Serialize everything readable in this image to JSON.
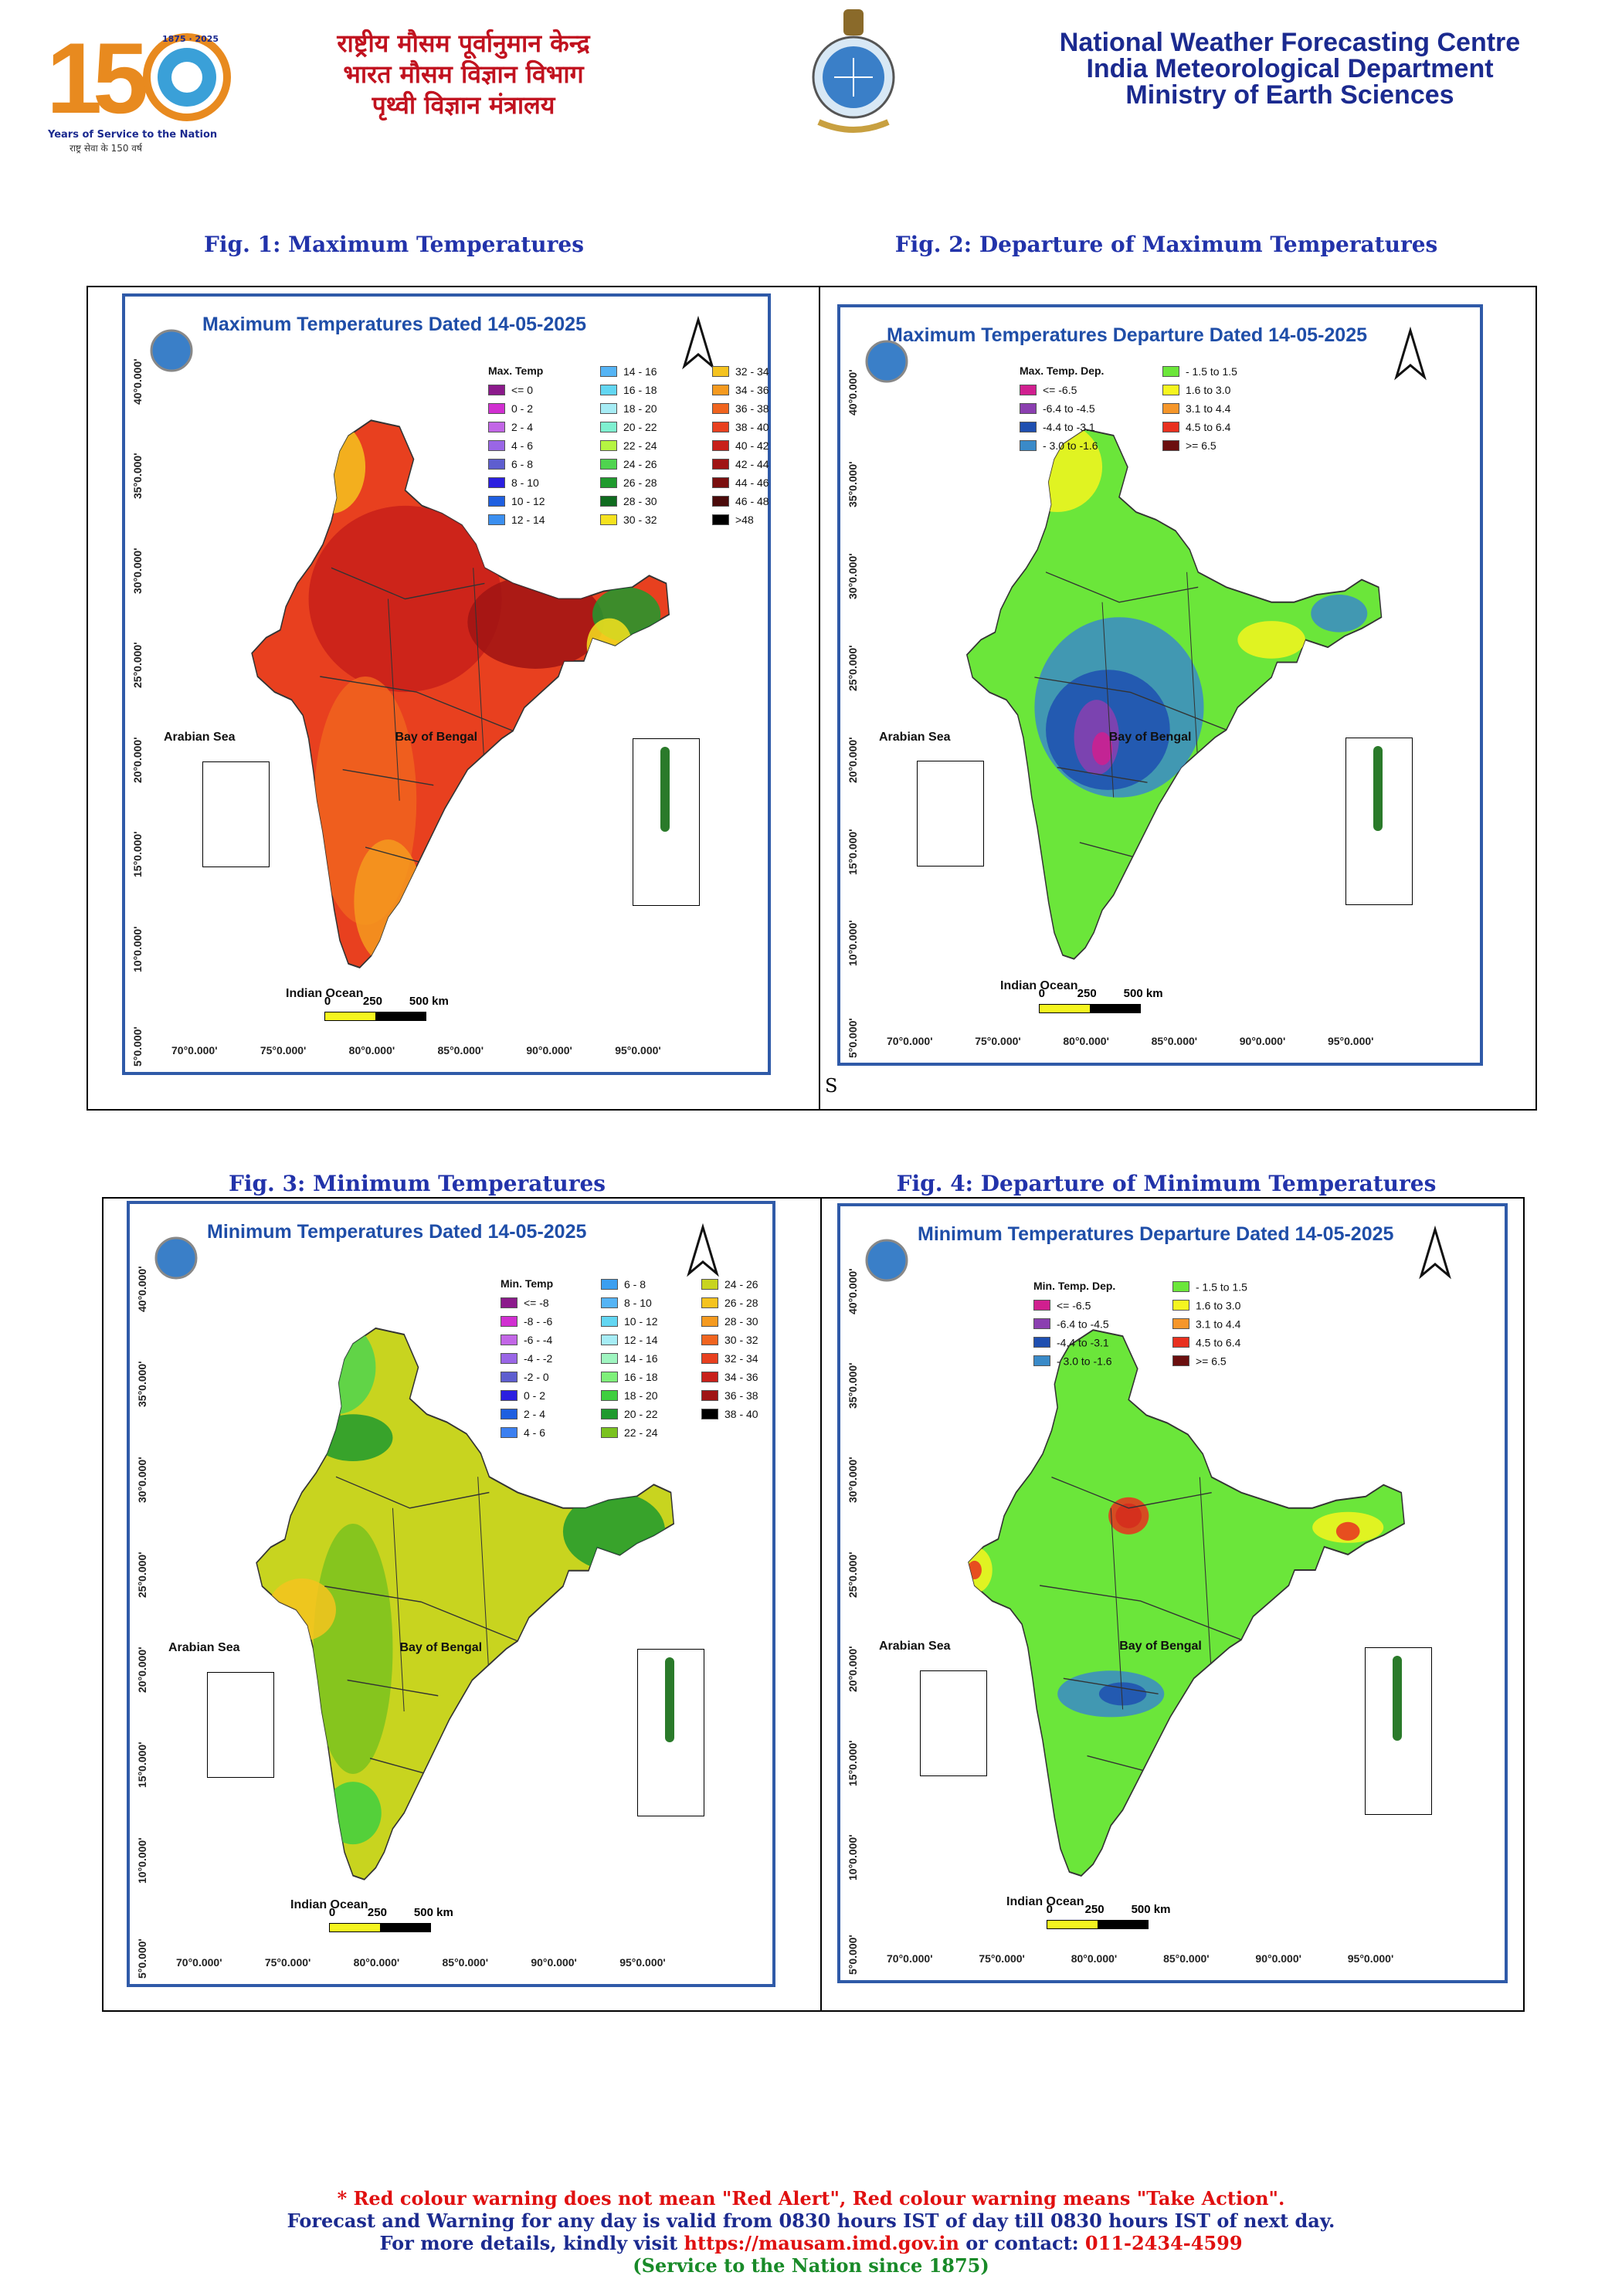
{
  "header": {
    "logo_number": "150",
    "logo_years": "1875 · 2025",
    "logo_tagline": "Years of Service to the Nation",
    "logo_tagline_hi": "राष्ट्र सेवा के 150 वर्ष",
    "hindi_lines": [
      "राष्ट्रीय मौसम पूर्वानुमान केन्द्र",
      "भारत मौसम विज्ञान विभाग",
      "पृथ्वी विज्ञान मंत्रालय"
    ],
    "english_lines": [
      "National Weather Forecasting Centre",
      "India Meteorological Department",
      "Ministry of Earth Sciences"
    ]
  },
  "figures": [
    {
      "caption": "Fig. 1: Maximum Temperatures",
      "map_title": "Maximum Temperatures  Dated 14-05-2025",
      "legend_title": "Max. Temp",
      "legend_items": [
        {
          "label": "<= 0",
          "color": "#8b1a8b"
        },
        {
          "label": "0 - 2",
          "color": "#d12fd1"
        },
        {
          "label": "2 - 4",
          "color": "#c266e6"
        },
        {
          "label": "4 - 6",
          "color": "#9a66e6"
        },
        {
          "label": "6 - 8",
          "color": "#5e5ecf"
        },
        {
          "label": "8 - 10",
          "color": "#2b1fe0"
        },
        {
          "label": "10 - 12",
          "color": "#1f5fe0"
        },
        {
          "label": "12 - 14",
          "color": "#3b8ff0"
        },
        {
          "label": "14 - 16",
          "color": "#55b4f5"
        },
        {
          "label": "16 - 18",
          "color": "#62d6f2"
        },
        {
          "label": "18 - 20",
          "color": "#a6ecf5"
        },
        {
          "label": "20 - 22",
          "color": "#7ff0d0"
        },
        {
          "label": "22 - 24",
          "color": "#b5f542"
        },
        {
          "label": "24 - 26",
          "color": "#4fd44f"
        },
        {
          "label": "26 - 28",
          "color": "#1f9a2e"
        },
        {
          "label": "28 - 30",
          "color": "#0f6b1f"
        },
        {
          "label": "30 - 32",
          "color": "#f5e21f"
        },
        {
          "label": "32 - 34",
          "color": "#f5c31f"
        },
        {
          "label": "34 - 36",
          "color": "#f59a1f"
        },
        {
          "label": "36 - 38",
          "color": "#f0641f"
        },
        {
          "label": "38 - 40",
          "color": "#e8401f"
        },
        {
          "label": "40 - 42",
          "color": "#c8201a"
        },
        {
          "label": "42 - 44",
          "color": "#a01414"
        },
        {
          "label": "44 - 46",
          "color": "#7a0f0f"
        },
        {
          "label": "46 - 48",
          "color": "#4a0a0a"
        },
        {
          "label": ">48",
          "color": "#000000"
        }
      ]
    },
    {
      "caption": "Fig. 2: Departure of Maximum Temperatures",
      "map_title": "Maximum Temperatures Departure Dated 14-05-2025",
      "legend_title": "Max. Temp. Dep.",
      "legend_items": [
        {
          "label": "<= -6.5",
          "color": "#d01f8f"
        },
        {
          "label": "-6.4 to -4.5",
          "color": "#8b3fb0"
        },
        {
          "label": "-4.4 to -3.1",
          "color": "#1f4fb0"
        },
        {
          "label": "- 3.0 to -1.6",
          "color": "#3a8ac8"
        },
        {
          "label": "- 1.5 to 1.5",
          "color": "#6be63a"
        },
        {
          "label": "1.6 to  3.0",
          "color": "#f5f51f"
        },
        {
          "label": "3.1 to 4.4",
          "color": "#f5962a"
        },
        {
          "label": "4.5 to 6.4",
          "color": "#e8301f"
        },
        {
          "label": ">= 6.5",
          "color": "#6b0f0f"
        }
      ],
      "note": "S"
    },
    {
      "caption": "Fig. 3: Minimum Temperatures",
      "map_title": "Minimum Temperatures  Dated 14-05-2025",
      "legend_title": "Min. Temp",
      "legend_items": [
        {
          "label": "<= -8",
          "color": "#8b1a8b"
        },
        {
          "label": "-8 - -6",
          "color": "#d12fd1"
        },
        {
          "label": "-6 - -4",
          "color": "#c266e6"
        },
        {
          "label": "-4 - -2",
          "color": "#9a66e6"
        },
        {
          "label": "-2 - 0",
          "color": "#5e5ecf"
        },
        {
          "label": "0 - 2",
          "color": "#2b1fe0"
        },
        {
          "label": "2 - 4",
          "color": "#1f5fe0"
        },
        {
          "label": "4 - 6",
          "color": "#3b7ff0"
        },
        {
          "label": "6 - 8",
          "color": "#3b9ff0"
        },
        {
          "label": "8 - 10",
          "color": "#55b4f5"
        },
        {
          "label": "10 - 12",
          "color": "#62d6f2"
        },
        {
          "label": "12 - 14",
          "color": "#a6ecf5"
        },
        {
          "label": "14 - 16",
          "color": "#9ff5c0"
        },
        {
          "label": "16 - 18",
          "color": "#7ff07a"
        },
        {
          "label": "18 - 20",
          "color": "#3fcf3f"
        },
        {
          "label": "20 - 22",
          "color": "#1f9a2e"
        },
        {
          "label": "22 - 24",
          "color": "#7ac21f"
        },
        {
          "label": "24 - 26",
          "color": "#c8d41f"
        },
        {
          "label": "26 - 28",
          "color": "#f5c31f"
        },
        {
          "label": "28 - 30",
          "color": "#f59a1f"
        },
        {
          "label": "30 - 32",
          "color": "#f0641f"
        },
        {
          "label": "32 - 34",
          "color": "#e8401f"
        },
        {
          "label": "34 - 36",
          "color": "#c8201a"
        },
        {
          "label": "36 - 38",
          "color": "#a01414"
        },
        {
          "label": "38 - 40",
          "color": "#000000"
        }
      ]
    },
    {
      "caption": "Fig. 4: Departure of Minimum Temperatures",
      "map_title": "Minimum Temperatures Departure Dated 14-05-2025",
      "legend_title": "Min. Temp. Dep.",
      "legend_items": [
        {
          "label": "<= -6.5",
          "color": "#d01f8f"
        },
        {
          "label": "-6.4 to -4.5",
          "color": "#8b3fb0"
        },
        {
          "label": "-4.4 to -3.1",
          "color": "#1f4fb0"
        },
        {
          "label": "- 3.0 to -1.6",
          "color": "#3a8ac8"
        },
        {
          "label": "- 1.5 to 1.5",
          "color": "#6be63a"
        },
        {
          "label": "1.6 to  3.0",
          "color": "#f5f51f"
        },
        {
          "label": "3.1 to 4.4",
          "color": "#f5962a"
        },
        {
          "label": "4.5 to 6.4",
          "color": "#e8301f"
        },
        {
          "label": ">= 6.5",
          "color": "#6b0f0f"
        }
      ]
    }
  ],
  "map_common": {
    "lat_labels": [
      "40°0.000'",
      "35°0.000'",
      "30°0.000'",
      "25°0.000'",
      "20°0.000'",
      "15°0.000'",
      "10°0.000'",
      "5°0.000'"
    ],
    "lon_labels": [
      "70°0.000'",
      "75°0.000'",
      "80°0.000'",
      "85°0.000'",
      "90°0.000'",
      "95°0.000'"
    ],
    "arabian_sea": "Arabian Sea",
    "bay_of_bengal": "Bay of Bengal",
    "indian_ocean": "Indian Ocean",
    "scale_labels": [
      "0",
      "250",
      "500 km"
    ]
  },
  "footer": {
    "line1": "* Red colour warning does not mean \"Red Alert\", Red colour warning means \"Take Action\".",
    "line2": "Forecast and Warning for any day is valid from 0830 hours IST of day till 0830 hours IST of next day.",
    "line3_prefix": "For more details, kindly visit ",
    "line3_url": "https://mausam.imd.gov.in",
    "line3_mid": " or contact: ",
    "line3_phone": "011-2434-4599",
    "line4": "(Service to the Nation since 1875)"
  }
}
